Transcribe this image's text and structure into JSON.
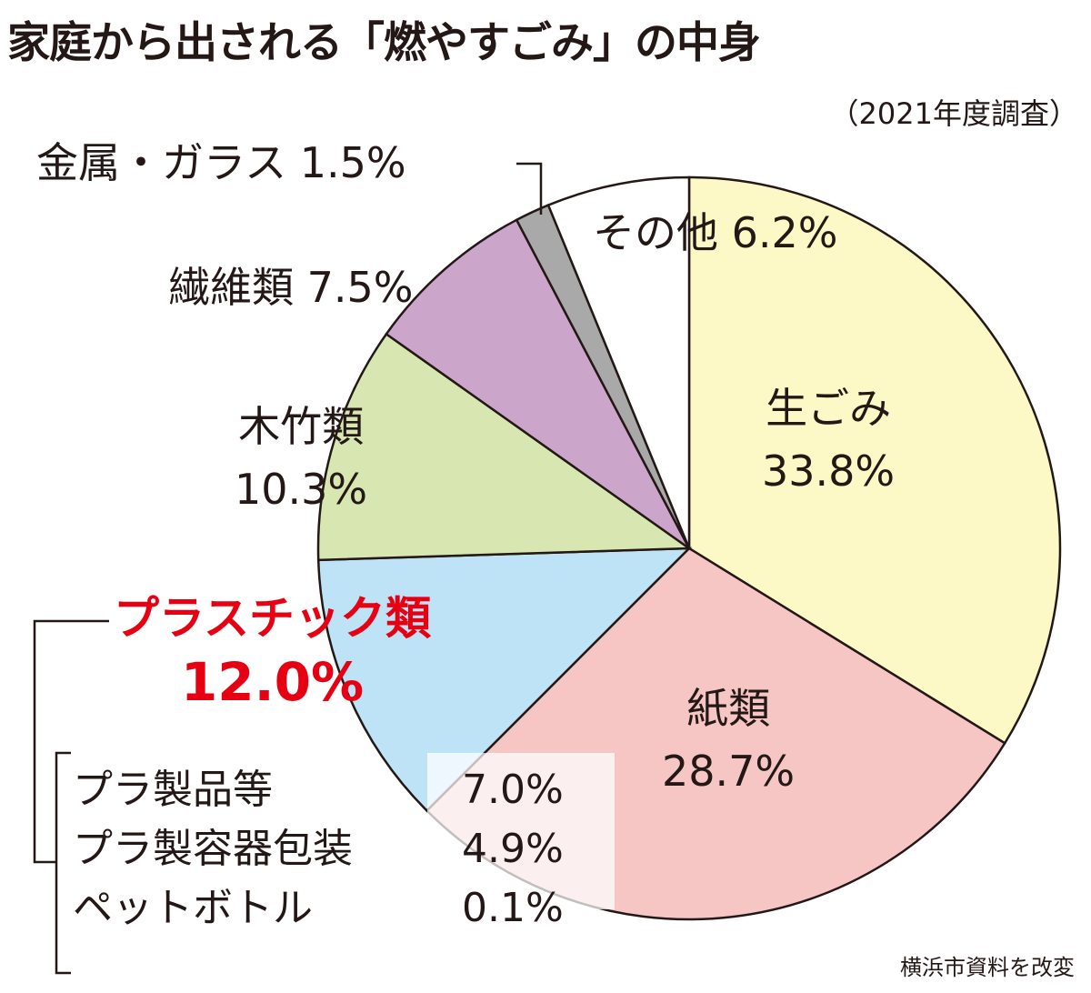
{
  "chart_data": {
    "type": "pie",
    "title": "家庭から出される「燃やすごみ」の中身",
    "subtitle": "（2021年度調査）",
    "source": "横浜市資料を改変",
    "start": "top, clockwise",
    "slices": [
      {
        "name": "生ごみ",
        "value": 33.8,
        "label": "33.8%",
        "color": "#fdf9c6"
      },
      {
        "name": "紙類",
        "value": 28.7,
        "label": "28.7%",
        "color": "#f5c6c4"
      },
      {
        "name": "プラスチック類",
        "value": 12.0,
        "label": "12.0%",
        "color": "#bee2f6"
      },
      {
        "name": "木竹類",
        "value": 10.3,
        "label": "10.3%",
        "color": "#d8e6b1"
      },
      {
        "name": "繊維類",
        "value": 7.5,
        "label": "7.5%",
        "color": "#cca5cb"
      },
      {
        "name": "金属・ガラス",
        "value": 1.5,
        "label": "1.5%",
        "color": "#a9a9a9"
      },
      {
        "name": "その他",
        "value": 6.2,
        "label": "6.2%",
        "color": "#ffffff"
      }
    ],
    "plastic_breakdown": [
      {
        "name": "プラ製品等",
        "label": "7.0%",
        "value": 7.0
      },
      {
        "name": "プラ製容器包装",
        "label": "4.9%",
        "value": 4.9
      },
      {
        "name": "ペットボトル",
        "label": "0.1%",
        "value": 0.1
      }
    ],
    "highlight_color": "#e60012"
  }
}
